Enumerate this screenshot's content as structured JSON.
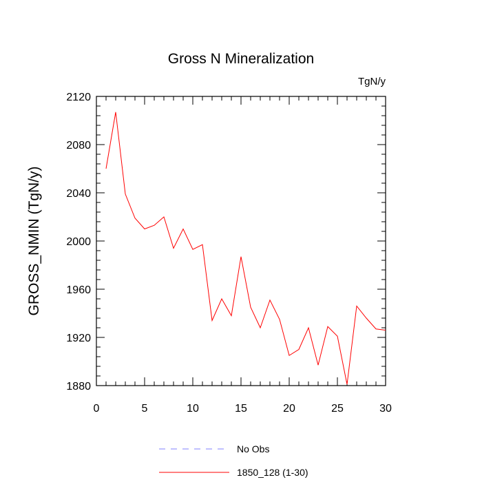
{
  "chart_data": {
    "type": "line",
    "title": "Gross N Mineralization",
    "units_label": "TgN/y",
    "xlabel": "",
    "ylabel": "GROSS_NMIN  (TgN/y)",
    "xlim": [
      0,
      30
    ],
    "ylim": [
      1880,
      2120
    ],
    "x_ticks": [
      0,
      5,
      10,
      15,
      20,
      25,
      30
    ],
    "y_ticks": [
      1880,
      1920,
      1960,
      2000,
      2040,
      2080,
      2120
    ],
    "grid": false,
    "legend_position": "bottom-center",
    "series": [
      {
        "name": "No Obs",
        "color": "#7f7fff",
        "style": "dashed",
        "x": [],
        "values": []
      },
      {
        "name": "1850_128 (1-30)",
        "color": "#ff0000",
        "style": "solid",
        "x": [
          1,
          2,
          3,
          4,
          5,
          6,
          7,
          8,
          9,
          10,
          11,
          12,
          13,
          14,
          15,
          16,
          17,
          18,
          19,
          20,
          21,
          22,
          23,
          24,
          25,
          26,
          27,
          28,
          29,
          30
        ],
        "values": [
          2060,
          2107,
          2039,
          2019,
          2010,
          2013,
          2020,
          1994,
          2010,
          1993,
          1997,
          1934,
          1952,
          1938,
          1987,
          1945,
          1928,
          1951,
          1935,
          1905,
          1910,
          1928,
          1897,
          1929,
          1921,
          1881,
          1946,
          1936,
          1927,
          1926
        ]
      }
    ]
  }
}
